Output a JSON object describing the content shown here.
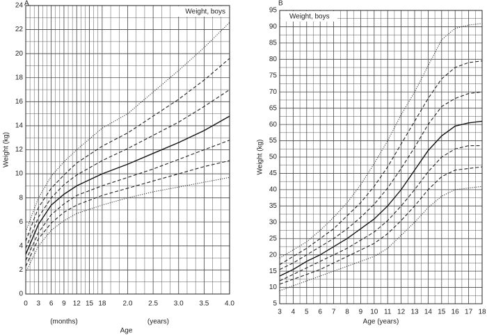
{
  "chart_data": [
    {
      "type": "line",
      "panel_label": "A",
      "annotation": "Weight, boys",
      "y_label": "Weight (kg)",
      "x_label": "Age",
      "x_unit_labels": [
        "(months)",
        "(years)"
      ],
      "x": [
        0,
        0.25,
        0.5,
        0.75,
        1,
        1.5,
        2,
        2.5,
        3,
        3.5,
        4
      ],
      "series": [
        {
          "color": "#333333",
          "style": "dotted",
          "values": [
            5.2,
            8,
            9.8,
            11,
            12,
            13.8,
            15,
            16.8,
            18.6,
            20.5,
            22.6
          ]
        },
        {
          "color": "#222222",
          "style": "dashed",
          "values": [
            4.4,
            7.2,
            8.8,
            9.9,
            10.9,
            12.3,
            13.4,
            14.8,
            16.2,
            17.8,
            19.6
          ]
        },
        {
          "color": "#222222",
          "style": "dashed",
          "values": [
            3.8,
            6.4,
            8,
            9.1,
            9.9,
            11.1,
            12.1,
            13.2,
            14.3,
            15.6,
            17
          ]
        },
        {
          "color": "#111111",
          "style": "solid",
          "values": [
            3.3,
            5.8,
            7.4,
            8.3,
            9,
            10,
            10.8,
            11.7,
            12.6,
            13.6,
            14.8
          ]
        },
        {
          "color": "#222222",
          "style": "dashed",
          "values": [
            2.8,
            5.1,
            6.6,
            7.5,
            8.2,
            9,
            9.7,
            10.4,
            11.2,
            12,
            12.8
          ]
        },
        {
          "color": "#222222",
          "style": "dashed",
          "values": [
            2.3,
            4.6,
            5.9,
            6.8,
            7.4,
            8.2,
            8.8,
            9.4,
            10,
            10.6,
            11.1
          ]
        },
        {
          "color": "#333333",
          "style": "dotted",
          "values": [
            1.8,
            4,
            5.3,
            6.1,
            6.7,
            7.4,
            8,
            8.5,
            8.9,
            9.3,
            9.7
          ]
        }
      ],
      "xlim": [
        0,
        4
      ],
      "xticks": [
        0,
        {
          "value": 0.25,
          "label": "3"
        },
        {
          "value": 0.5,
          "label": "6"
        },
        {
          "value": 0.75,
          "label": "9"
        },
        {
          "value": 1,
          "label": "12"
        },
        {
          "value": 1.25,
          "label": "15"
        },
        {
          "value": 1.5,
          "label": "18"
        },
        {
          "value": 2,
          "label": "2.0"
        },
        2.5,
        {
          "value": 3,
          "label": "3.0"
        },
        3.5,
        {
          "value": 4,
          "label": "4.0"
        }
      ],
      "ylim": [
        0,
        24
      ],
      "yticks": [
        0,
        2,
        4,
        6,
        8,
        10,
        12,
        14,
        16,
        18,
        20,
        22,
        24
      ],
      "grid": true,
      "minor_grid": true
    },
    {
      "type": "line",
      "panel_label": "B",
      "annotation": "Weight, boys",
      "y_label": "Weight (kg)",
      "x_label": "Age (years)",
      "x": [
        3,
        4,
        5,
        6,
        7,
        8,
        9,
        10,
        11,
        12,
        13,
        14,
        15,
        16,
        17,
        18
      ],
      "series": [
        {
          "color": "#333333",
          "style": "dotted",
          "values": [
            19,
            21.5,
            24,
            27.5,
            31.5,
            36,
            41.5,
            48,
            55,
            63,
            70,
            78,
            86,
            89.5,
            90.5,
            91
          ]
        },
        {
          "color": "#222222",
          "style": "dashed",
          "values": [
            17,
            19.5,
            22,
            25,
            28,
            32,
            36,
            41,
            47,
            54,
            61,
            68,
            74,
            77.5,
            79,
            79.5
          ]
        },
        {
          "color": "#222222",
          "style": "dashed",
          "values": [
            15.5,
            17.5,
            20,
            22.5,
            25,
            28,
            31.5,
            35.5,
            40.5,
            46.5,
            53,
            60,
            65.5,
            68,
            69.5,
            70
          ]
        },
        {
          "color": "#111111",
          "style": "solid",
          "values": [
            13.5,
            15.5,
            18,
            20,
            22.5,
            25,
            28,
            31,
            35,
            40,
            46,
            52,
            56.5,
            59.5,
            60.5,
            61
          ]
        },
        {
          "color": "#222222",
          "style": "dashed",
          "values": [
            12,
            14,
            16,
            18,
            20,
            22,
            24.5,
            27,
            30.5,
            35,
            40,
            45.5,
            50,
            52.5,
            53.5,
            53.5
          ]
        },
        {
          "color": "#222222",
          "style": "dashed",
          "values": [
            11,
            12.5,
            14,
            15.5,
            17.5,
            19.5,
            21.5,
            23.5,
            26.5,
            30.5,
            35,
            40,
            44,
            46,
            46.5,
            47
          ]
        },
        {
          "color": "#333333",
          "style": "dotted",
          "values": [
            9,
            10.5,
            12,
            13.5,
            15,
            16.5,
            18,
            19.5,
            22,
            26,
            30,
            34.5,
            38,
            40,
            40.5,
            41
          ]
        }
      ],
      "xlim": [
        3,
        18
      ],
      "xticks": [
        3,
        4,
        5,
        6,
        7,
        8,
        9,
        10,
        11,
        12,
        13,
        14,
        15,
        16,
        17,
        18
      ],
      "ylim": [
        5,
        95
      ],
      "yticks": [
        5,
        10,
        15,
        20,
        25,
        30,
        35,
        40,
        45,
        50,
        55,
        60,
        65,
        70,
        75,
        80,
        85,
        90,
        95
      ],
      "grid": true,
      "minor_grid": true
    }
  ]
}
